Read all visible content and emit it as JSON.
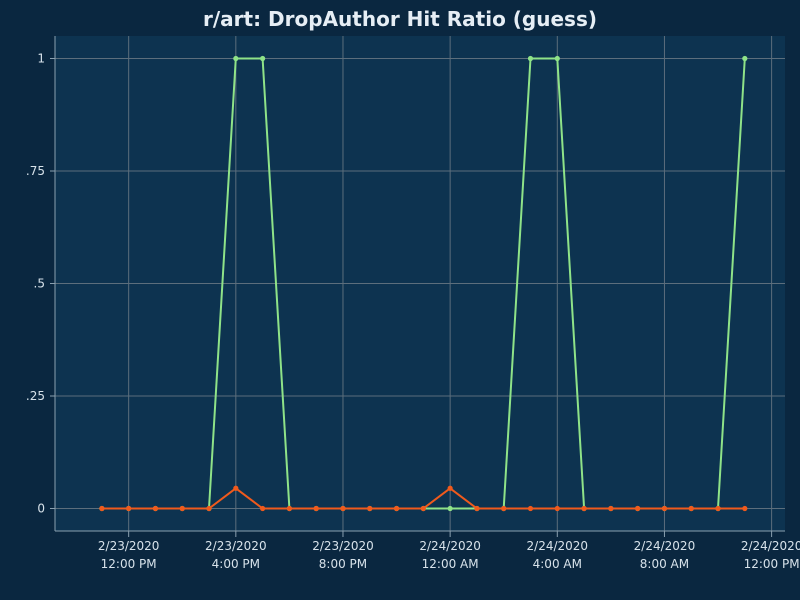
{
  "chart_data": {
    "type": "line",
    "title": "r/art: DropAuthor Hit Ratio (guess)",
    "xlabel": "",
    "ylabel": "",
    "ylim": [
      -0.05,
      1.05
    ],
    "y_ticks": [
      {
        "value": 0,
        "label": "0"
      },
      {
        "value": 0.25,
        "label": ".25"
      },
      {
        "value": 0.5,
        "label": ".5"
      },
      {
        "value": 0.75,
        "label": ".75"
      },
      {
        "value": 1,
        "label": "1"
      }
    ],
    "x_range": [
      "2020-02-23T09:15",
      "2020-02-24T12:30"
    ],
    "x_ticks": [
      {
        "value": "2020-02-23T12:00",
        "date": "2/23/2020",
        "time": "12:00 PM"
      },
      {
        "value": "2020-02-23T16:00",
        "date": "2/23/2020",
        "time": "4:00 PM"
      },
      {
        "value": "2020-02-23T20:00",
        "date": "2/23/2020",
        "time": "8:00 PM"
      },
      {
        "value": "2020-02-24T00:00",
        "date": "2/24/2020",
        "time": "12:00 AM"
      },
      {
        "value": "2020-02-24T04:00",
        "date": "2/24/2020",
        "time": "4:00 AM"
      },
      {
        "value": "2020-02-24T08:00",
        "date": "2/24/2020",
        "time": "8:00 AM"
      },
      {
        "value": "2020-02-24T12:00",
        "date": "2/24/2020",
        "time": "12:00 PM"
      }
    ],
    "x": [
      "2020-02-23T11:00",
      "2020-02-23T12:00",
      "2020-02-23T13:00",
      "2020-02-23T14:00",
      "2020-02-23T15:00",
      "2020-02-23T16:00",
      "2020-02-23T17:00",
      "2020-02-23T18:00",
      "2020-02-23T19:00",
      "2020-02-23T20:00",
      "2020-02-23T21:00",
      "2020-02-23T22:00",
      "2020-02-23T23:00",
      "2020-02-24T00:00",
      "2020-02-24T01:00",
      "2020-02-24T02:00",
      "2020-02-24T03:00",
      "2020-02-24T04:00",
      "2020-02-24T05:00",
      "2020-02-24T06:00",
      "2020-02-24T07:00",
      "2020-02-24T08:00",
      "2020-02-24T09:00",
      "2020-02-24T10:00",
      "2020-02-24T11:00"
    ],
    "series": [
      {
        "color": "#8fe388",
        "values": [
          0,
          0,
          0,
          0,
          0,
          1,
          1,
          0,
          0,
          0,
          0,
          0,
          0,
          0,
          0,
          0,
          1,
          1,
          0,
          0,
          0,
          0,
          0,
          0,
          1
        ],
        "x_index": [
          0,
          1,
          2,
          3,
          4,
          5,
          6,
          7,
          8,
          9,
          10,
          11,
          12,
          13,
          14,
          15,
          16,
          17,
          18,
          19,
          20,
          21,
          22,
          23,
          24
        ]
      },
      {
        "color": "#f05a1c",
        "values": [
          0,
          0,
          0,
          0,
          0,
          0.045,
          0,
          0,
          0,
          0,
          0,
          0,
          0,
          0.045,
          0,
          0,
          0,
          0,
          0,
          0,
          0,
          0,
          0,
          0,
          0
        ],
        "x_index": [
          0,
          1,
          2,
          3,
          4,
          5,
          6,
          7,
          8,
          9,
          10,
          11,
          12,
          13,
          14,
          15,
          16,
          17,
          18,
          19,
          20,
          21,
          22,
          23,
          24
        ]
      }
    ],
    "grid": true,
    "legend": "none",
    "colors": {
      "plot_background": "#0d3350",
      "page_background": "#0a2740"
    }
  }
}
